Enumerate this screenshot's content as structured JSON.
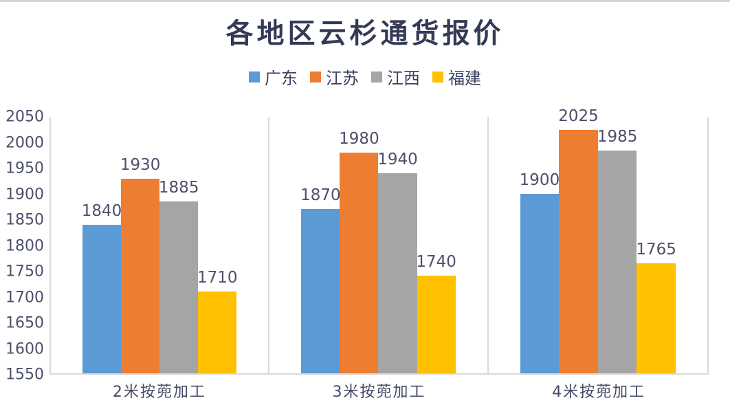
{
  "title": "各地区云杉通货报价",
  "colors": {
    "guangdong_blue": "#5B9BD5",
    "jiangsu_orange": "#ED7D31",
    "jiangxi_gray": "#A5A5A5",
    "fujian_yellow": "#FFC000",
    "axis_line": "#D9D9D9",
    "text_dark": "#454A66",
    "title_navy": "#343A56"
  },
  "chart_data": {
    "type": "bar",
    "title": "各地区云杉通货报价",
    "categories": [
      "2米按蔸加工",
      "3米按蔸加工",
      "4米按蔸加工"
    ],
    "series": [
      {
        "name": "广东",
        "color": "#5B9BD5",
        "values": [
          1840,
          1870,
          1900
        ]
      },
      {
        "name": "江苏",
        "color": "#ED7D31",
        "values": [
          1930,
          1980,
          2025
        ]
      },
      {
        "name": "江西",
        "color": "#A5A5A5",
        "values": [
          1885,
          1940,
          1985
        ]
      },
      {
        "name": "福建",
        "color": "#FFC000",
        "values": [
          1710,
          1740,
          1765
        ]
      }
    ],
    "xlabel": "",
    "ylabel": "",
    "ylim": [
      1550,
      2050
    ],
    "ytick_step": 50,
    "yticks": [
      2050,
      2000,
      1950,
      1900,
      1850,
      1800,
      1750,
      1700,
      1650,
      1600,
      1550
    ],
    "grid": "vertical-category-separators",
    "legend_position": "top",
    "data_labels": true
  }
}
